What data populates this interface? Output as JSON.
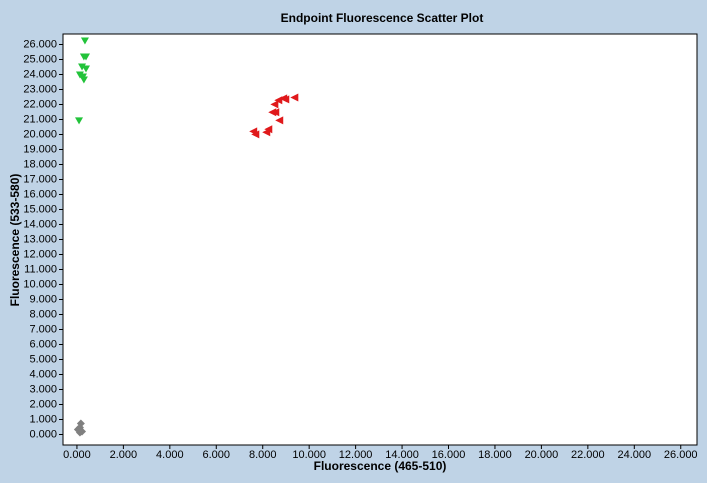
{
  "chart_data": {
    "type": "scatter",
    "title": "Endpoint Fluorescence Scatter Plot",
    "xlabel": "Fluorescence (465-510)",
    "ylabel": "Fluorescence (533-580)",
    "xlim": [
      -600,
      26700
    ],
    "ylim": [
      -700,
      26700
    ],
    "xticks": [
      {
        "value": 0,
        "label": "0.000"
      },
      {
        "value": 2000,
        "label": "2.000"
      },
      {
        "value": 4000,
        "label": "4.000"
      },
      {
        "value": 6000,
        "label": "6.000"
      },
      {
        "value": 8000,
        "label": "8.000"
      },
      {
        "value": 10000,
        "label": "10.000"
      },
      {
        "value": 12000,
        "label": "12.000"
      },
      {
        "value": 14000,
        "label": "14.000"
      },
      {
        "value": 16000,
        "label": "16.000"
      },
      {
        "value": 18000,
        "label": "18.000"
      },
      {
        "value": 20000,
        "label": "20.000"
      },
      {
        "value": 22000,
        "label": "22.000"
      },
      {
        "value": 24000,
        "label": "24.000"
      },
      {
        "value": 26000,
        "label": "26.000"
      }
    ],
    "yticks": [
      {
        "value": 0,
        "label": "0.000"
      },
      {
        "value": 1000,
        "label": "1.000"
      },
      {
        "value": 2000,
        "label": "2.000"
      },
      {
        "value": 3000,
        "label": "3.000"
      },
      {
        "value": 4000,
        "label": "4.000"
      },
      {
        "value": 5000,
        "label": "5.000"
      },
      {
        "value": 6000,
        "label": "6.000"
      },
      {
        "value": 7000,
        "label": "7.000"
      },
      {
        "value": 8000,
        "label": "8.000"
      },
      {
        "value": 9000,
        "label": "9.000"
      },
      {
        "value": 10000,
        "label": "10.000"
      },
      {
        "value": 11000,
        "label": "11.000"
      },
      {
        "value": 12000,
        "label": "12.000"
      },
      {
        "value": 13000,
        "label": "13.000"
      },
      {
        "value": 14000,
        "label": "14.000"
      },
      {
        "value": 15000,
        "label": "15.000"
      },
      {
        "value": 16000,
        "label": "16.000"
      },
      {
        "value": 17000,
        "label": "17.000"
      },
      {
        "value": 18000,
        "label": "18.000"
      },
      {
        "value": 19000,
        "label": "19.000"
      },
      {
        "value": 20000,
        "label": "20.000"
      },
      {
        "value": 21000,
        "label": "21.000"
      },
      {
        "value": 22000,
        "label": "22.000"
      },
      {
        "value": 23000,
        "label": "23.000"
      },
      {
        "value": 24000,
        "label": "24.000"
      },
      {
        "value": 25000,
        "label": "25.000"
      },
      {
        "value": 26000,
        "label": "26.000"
      }
    ],
    "grid": false,
    "series": [
      {
        "color": "#22c33a",
        "marker": "triangle-down",
        "x": [
          345,
          300,
          390,
          220,
          390,
          130,
          260,
          300,
          90
        ],
        "values": [
          26270,
          25200,
          25200,
          24530,
          24400,
          24000,
          23870,
          23670,
          20940
        ]
      },
      {
        "color": "#e0191b",
        "marker": "triangle-left",
        "x": [
          7590,
          7680,
          8150,
          8240,
          8710,
          8540,
          8410,
          8500,
          8670,
          8880,
          8970,
          9360
        ],
        "values": [
          20210,
          20010,
          20150,
          20350,
          20940,
          21480,
          21480,
          22010,
          22280,
          22410,
          22340,
          22470
        ]
      },
      {
        "color": "#808080",
        "marker": "diamond",
        "x": [
          170,
          130,
          40,
          220,
          130
        ],
        "values": [
          730,
          470,
          330,
          200,
          130
        ]
      }
    ]
  }
}
